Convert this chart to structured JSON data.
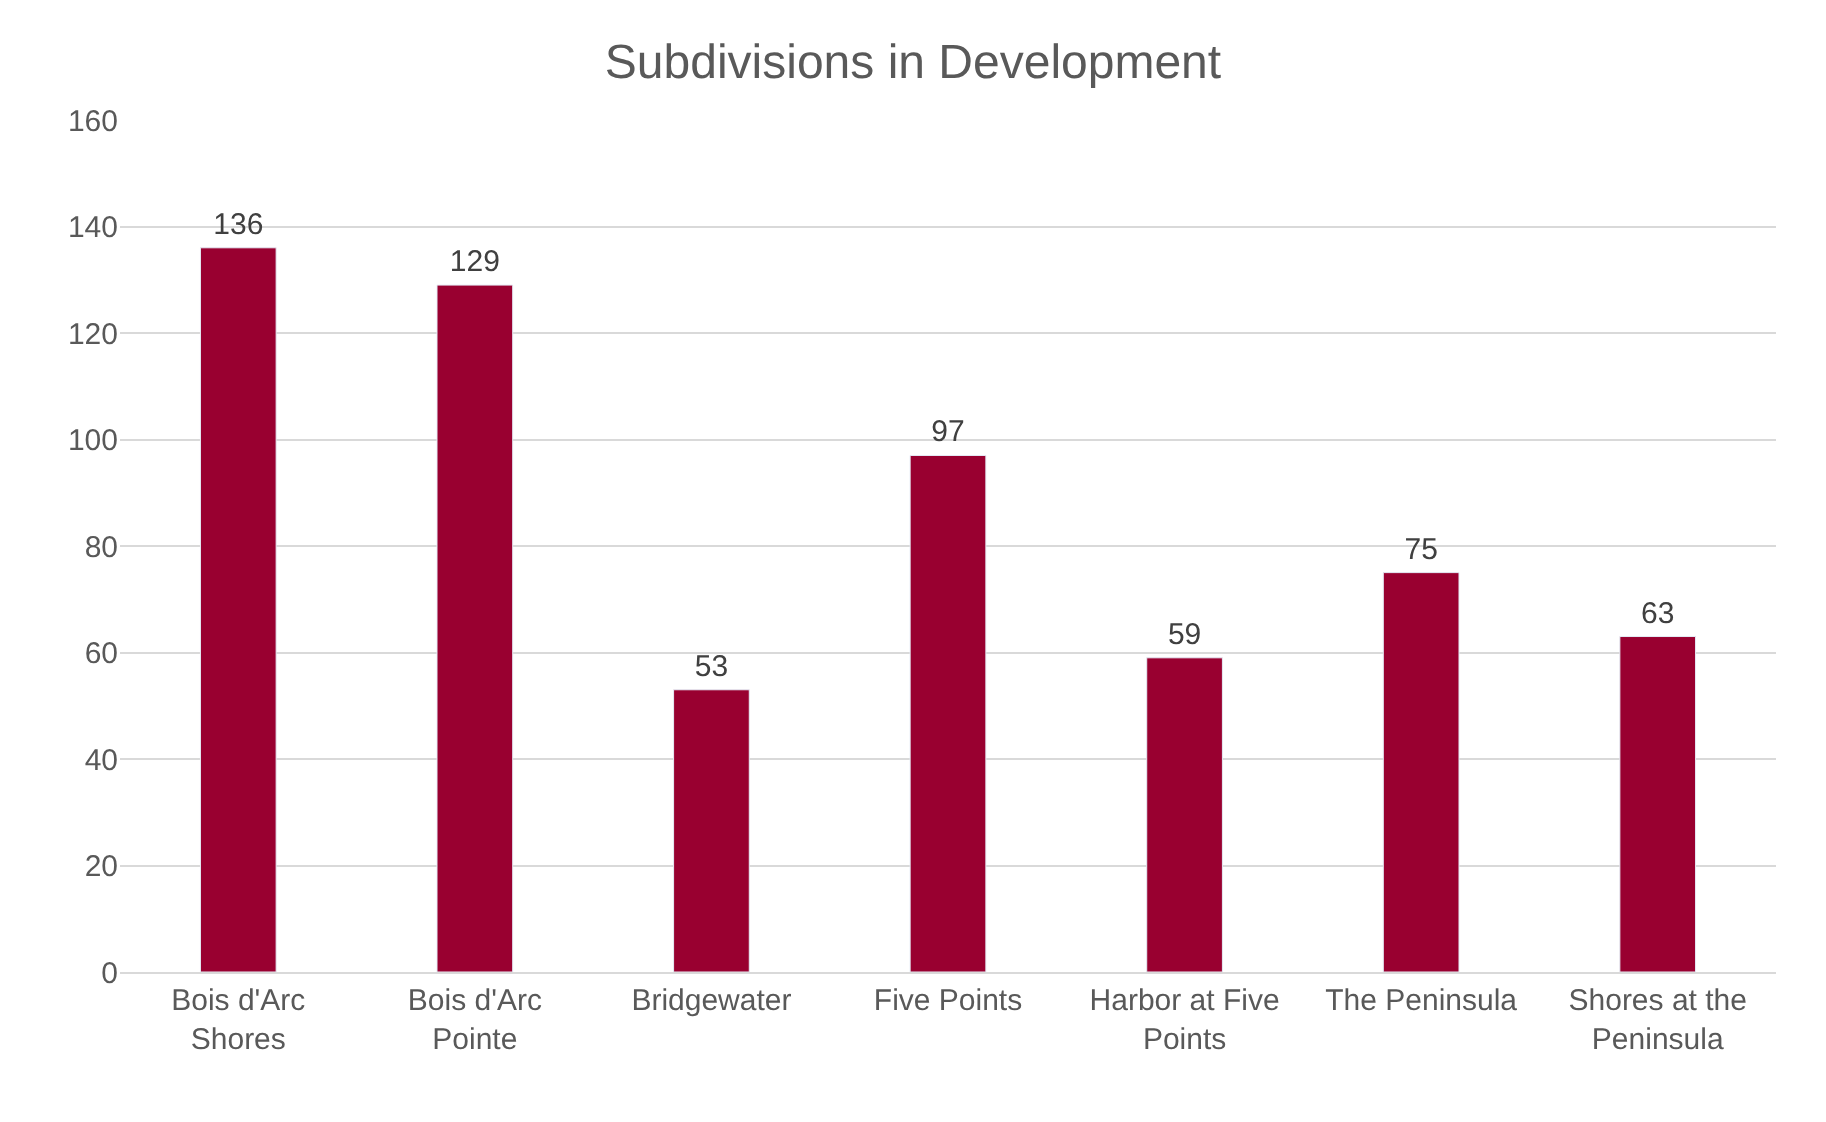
{
  "chart_data": {
    "type": "bar",
    "title": "Subdivisions in Development",
    "categories": [
      "Bois d'Arc Shores",
      "Bois d'Arc Pointe",
      "Bridgewater",
      "Five Points",
      "Harbor at Five Points",
      "The Peninsula",
      "Shores at the Peninsula"
    ],
    "values": [
      136,
      129,
      53,
      97,
      59,
      75,
      63
    ],
    "color": "#990030",
    "ylim": [
      0,
      160
    ],
    "yticks": [
      0,
      20,
      40,
      60,
      80,
      100,
      120,
      140,
      160
    ],
    "grid": "y",
    "data_labels": true
  }
}
